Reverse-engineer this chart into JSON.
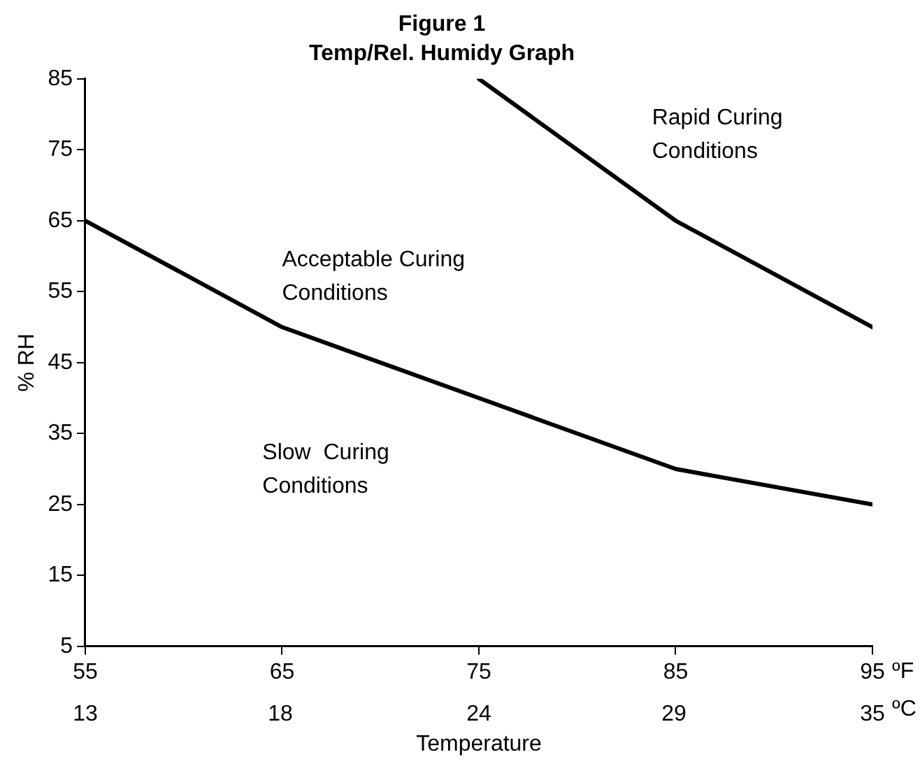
{
  "chart_data": {
    "type": "line",
    "title": "Figure 1",
    "subtitle": "Temp/Rel. Humidy Graph",
    "xlabel": "Temperature",
    "ylabel": "% RH",
    "xlim": [
      55,
      95
    ],
    "xticks": [
      55,
      65,
      75,
      85,
      95
    ],
    "x2lim": [
      12.8,
      35
    ],
    "x2ticks": [
      {
        "value": 12.8,
        "label": "13"
      },
      {
        "value": 18.3,
        "label": "18"
      },
      {
        "value": 23.9,
        "label": "24"
      },
      {
        "value": 29.4,
        "label": "29"
      },
      {
        "value": 35,
        "label": "35"
      }
    ],
    "ylim": [
      5,
      85
    ],
    "yticks": [
      5,
      15,
      25,
      35,
      45,
      55,
      65,
      75,
      85
    ],
    "series": [
      {
        "color": "#000000",
        "x": [
          55,
          65,
          75,
          85,
          95
        ],
        "values": [
          65,
          50,
          40,
          30,
          25
        ]
      },
      {
        "color": "#000000",
        "x": [
          75,
          85,
          95
        ],
        "values": [
          85,
          65,
          50
        ]
      }
    ],
    "annotations": [
      "ºF",
      "ºC",
      "Rapid Curing\nConditions",
      "Acceptable Curing\nConditions",
      "Slow  Curing\nConditions"
    ],
    "grid": false,
    "legend": false,
    "marker": "none",
    "line_style": "solid"
  }
}
